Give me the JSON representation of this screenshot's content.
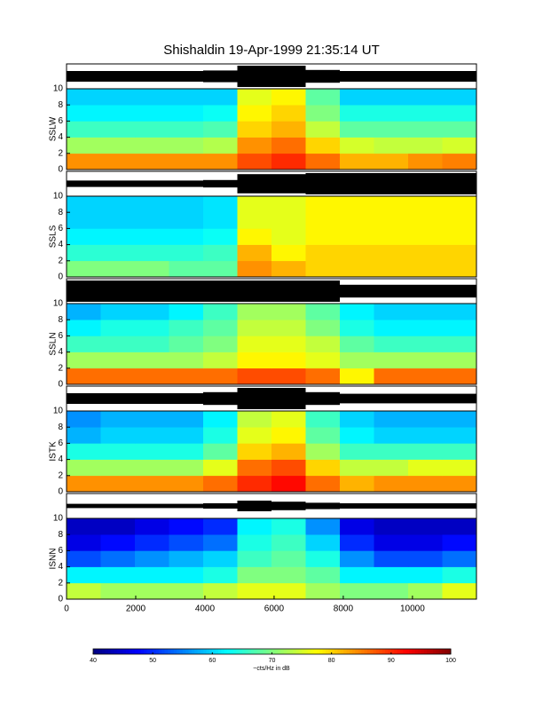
{
  "chart_data": {
    "type": "spectrogram",
    "title": "Shishaldin  19-Apr-1999 21:35:14 UT",
    "xlim": [
      0,
      11850
    ],
    "xticks": [
      0,
      2000,
      4000,
      6000,
      8000,
      10000
    ],
    "ylim": [
      0,
      10
    ],
    "yticks": [
      0,
      2,
      4,
      6,
      8,
      10
    ],
    "time_bins": [
      0,
      987.5,
      1975,
      2962.5,
      3950,
      4937.5,
      5925,
      6912.5,
      7900,
      8887.5,
      9875,
      10862.5,
      11850
    ],
    "freq_bins": [
      0,
      2,
      4,
      6,
      8,
      10
    ],
    "clim": [
      40,
      100
    ],
    "cticks": [
      40,
      50,
      60,
      70,
      80,
      90,
      100
    ],
    "colorbar_label": "~cts/Hz in dB",
    "stations": [
      {
        "name": "SSLW",
        "envelope": [
          0.5,
          0.5,
          0.5,
          0.5,
          0.55,
          1,
          1,
          0.6,
          0.5,
          0.5,
          0.5,
          0.5
        ],
        "values": [
          [
            84,
            84,
            84,
            84,
            84,
            88,
            90,
            86,
            82,
            82,
            84,
            85
          ],
          [
            72,
            72,
            72,
            72,
            73,
            84,
            86,
            80,
            75,
            74,
            74,
            75
          ],
          [
            66,
            66,
            66,
            66,
            67,
            80,
            82,
            74,
            68,
            68,
            68,
            68
          ],
          [
            62,
            62,
            62,
            62,
            63,
            78,
            80,
            70,
            64,
            64,
            64,
            64
          ],
          [
            60,
            60,
            60,
            60,
            60,
            76,
            78,
            68,
            60,
            60,
            60,
            60
          ]
        ]
      },
      {
        "name": "SSLS",
        "envelope": [
          0.3,
          0.3,
          0.3,
          0.3,
          0.35,
          0.9,
          0.9,
          1,
          1,
          1,
          1,
          1
        ],
        "values": [
          [
            70,
            70,
            70,
            68,
            68,
            84,
            82,
            80,
            80,
            80,
            80,
            80
          ],
          [
            65,
            65,
            65,
            65,
            66,
            82,
            78,
            80,
            80,
            80,
            80,
            80
          ],
          [
            62,
            62,
            62,
            62,
            63,
            78,
            76,
            78,
            78,
            78,
            78,
            78
          ],
          [
            60,
            60,
            60,
            60,
            61,
            76,
            76,
            78,
            78,
            78,
            78,
            78
          ],
          [
            60,
            60,
            60,
            60,
            61,
            76,
            76,
            78,
            78,
            78,
            78,
            78
          ]
        ]
      },
      {
        "name": "SSLN",
        "envelope": [
          1,
          1,
          1,
          1,
          1,
          1,
          1,
          1,
          0.6,
          0.6,
          0.6,
          0.6
        ],
        "values": [
          [
            86,
            86,
            86,
            86,
            86,
            88,
            88,
            86,
            78,
            86,
            86,
            86
          ],
          [
            72,
            72,
            72,
            72,
            74,
            78,
            78,
            76,
            72,
            72,
            72,
            72
          ],
          [
            66,
            66,
            66,
            68,
            70,
            76,
            76,
            74,
            68,
            66,
            66,
            66
          ],
          [
            62,
            64,
            64,
            66,
            68,
            74,
            74,
            70,
            64,
            62,
            62,
            62
          ],
          [
            58,
            60,
            60,
            62,
            66,
            72,
            72,
            68,
            62,
            60,
            60,
            60
          ]
        ]
      },
      {
        "name": "ISTK",
        "envelope": [
          0.5,
          0.5,
          0.5,
          0.5,
          0.6,
          1,
          1,
          0.6,
          0.45,
          0.45,
          0.45,
          0.45
        ],
        "values": [
          [
            84,
            84,
            84,
            84,
            86,
            90,
            92,
            86,
            82,
            84,
            84,
            84
          ],
          [
            72,
            72,
            72,
            72,
            76,
            86,
            88,
            80,
            74,
            74,
            76,
            76
          ],
          [
            64,
            64,
            64,
            64,
            68,
            80,
            82,
            72,
            66,
            66,
            66,
            66
          ],
          [
            58,
            60,
            60,
            60,
            64,
            76,
            78,
            68,
            62,
            60,
            60,
            60
          ],
          [
            56,
            58,
            58,
            58,
            62,
            74,
            76,
            66,
            60,
            58,
            58,
            58
          ]
        ]
      },
      {
        "name": "ISNN",
        "envelope": [
          0.2,
          0.2,
          0.2,
          0.2,
          0.25,
          0.5,
          0.4,
          0.3,
          0.25,
          0.25,
          0.25,
          0.25
        ],
        "values": [
          [
            74,
            72,
            72,
            72,
            74,
            76,
            76,
            72,
            70,
            70,
            72,
            76
          ],
          [
            62,
            62,
            62,
            62,
            64,
            70,
            70,
            68,
            62,
            62,
            62,
            64
          ],
          [
            52,
            54,
            56,
            58,
            60,
            66,
            68,
            64,
            56,
            52,
            52,
            54
          ],
          [
            46,
            48,
            50,
            52,
            54,
            64,
            66,
            60,
            50,
            46,
            46,
            48
          ],
          [
            44,
            44,
            46,
            48,
            50,
            62,
            64,
            56,
            46,
            44,
            44,
            44
          ]
        ]
      }
    ]
  }
}
